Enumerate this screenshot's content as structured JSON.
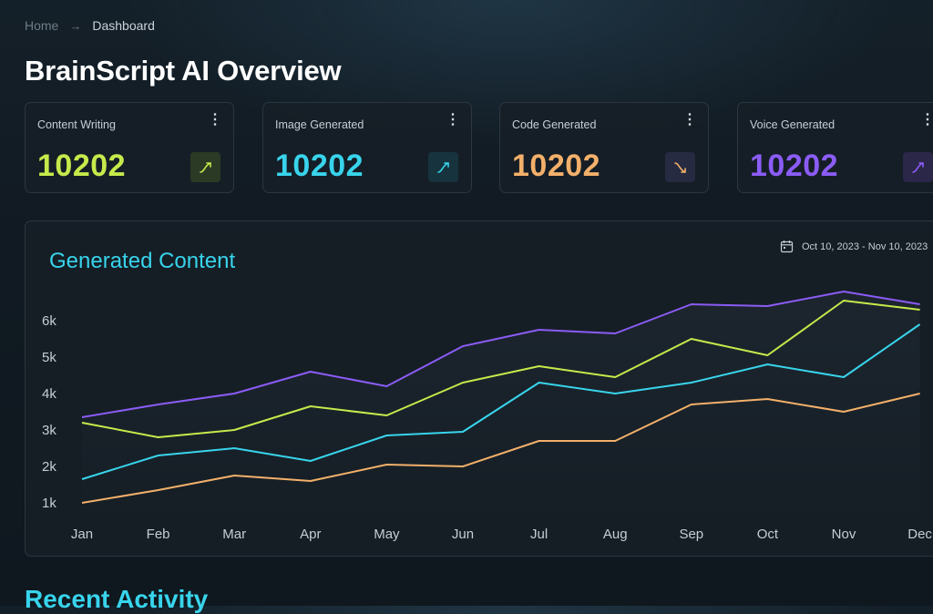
{
  "breadcrumb": {
    "home": "Home",
    "current": "Dashboard"
  },
  "page_title": "BrainScript AI Overview",
  "stats": [
    {
      "label": "Content Writing",
      "value": "10202",
      "color": "#c5ea4b",
      "trend": "up",
      "trend_bg": "#2a3a25"
    },
    {
      "label": "Image Generated",
      "value": "10202",
      "color": "#38d4ec",
      "trend": "up",
      "trend_bg": "#17333d"
    },
    {
      "label": "Code Generated",
      "value": "10202",
      "color": "#f3b06a",
      "trend": "down",
      "trend_bg": "#262b41"
    },
    {
      "label": "Voice Generated",
      "value": "10202",
      "color": "#8b5cf6",
      "trend": "up",
      "trend_bg": "#2b2748"
    }
  ],
  "chart": {
    "title": "Generated Content",
    "date_range": "Oct 10, 2023 - Nov 10, 2023"
  },
  "recent_activity_title": "Recent Activity",
  "chart_data": {
    "type": "line",
    "title": "Generated Content",
    "categories": [
      "Jan",
      "Feb",
      "Mar",
      "Apr",
      "May",
      "Jun",
      "Jul",
      "Aug",
      "Sep",
      "Oct",
      "Nov",
      "Dec"
    ],
    "y_tick_labels": [
      "1k",
      "2k",
      "3k",
      "4k",
      "5k",
      "6k"
    ],
    "ylim": [
      1000,
      6000
    ],
    "grid": false,
    "series": [
      {
        "color": "#8b5cf6",
        "values": [
          3350,
          3700,
          4000,
          4600,
          4200,
          5300,
          5750,
          5650,
          6450,
          6400,
          6800,
          6450
        ]
      },
      {
        "color": "#c5ea4b",
        "values": [
          3200,
          2800,
          3000,
          3650,
          3400,
          4300,
          4750,
          4450,
          5500,
          5050,
          6550,
          6300
        ]
      },
      {
        "color": "#38d4ec",
        "values": [
          1650,
          2300,
          2500,
          2150,
          2850,
          2950,
          4300,
          4000,
          4300,
          4800,
          4450,
          5900
        ]
      },
      {
        "color": "#f3b06a",
        "values": [
          1000,
          1350,
          1750,
          1600,
          2050,
          2000,
          2700,
          2700,
          3700,
          3850,
          3500,
          4000
        ]
      }
    ]
  }
}
